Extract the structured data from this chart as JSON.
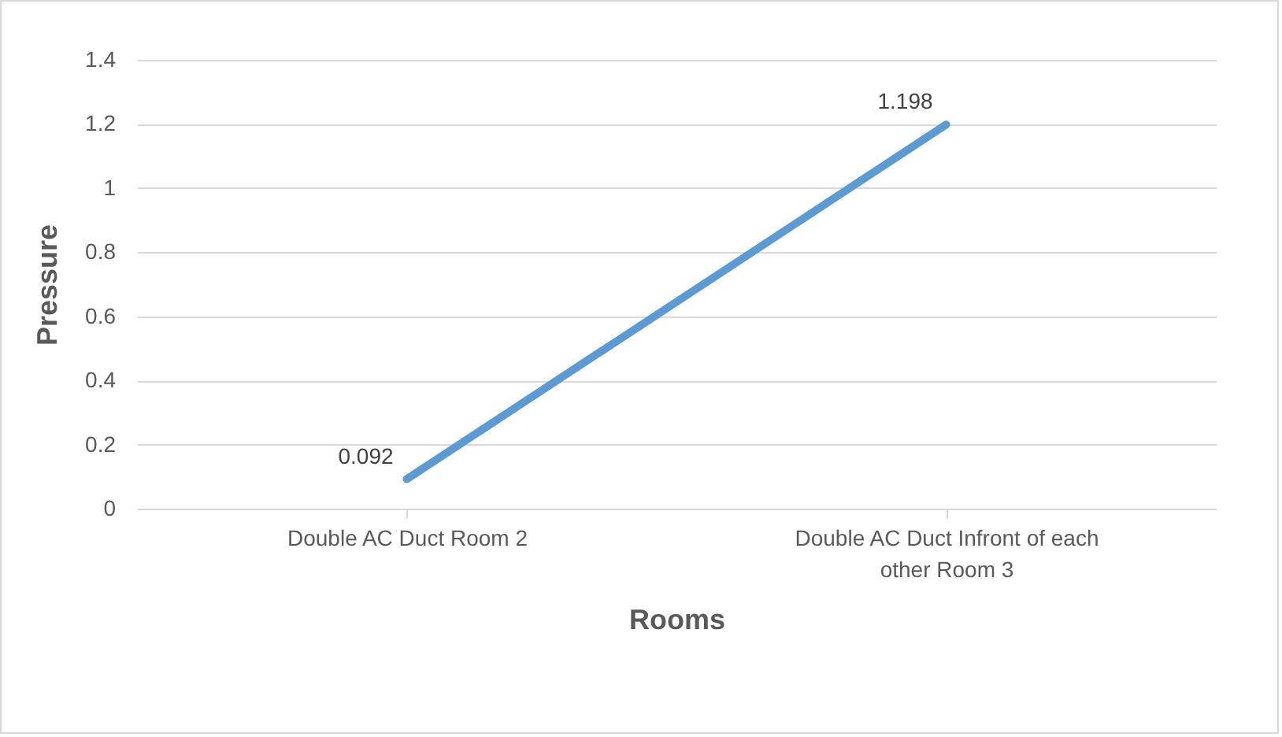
{
  "chart_data": {
    "type": "line",
    "categories": [
      "Double AC Duct Room 2",
      "Double AC Duct Infront of each other Room 3"
    ],
    "values": [
      0.092,
      1.198
    ],
    "color": "#5b9bd5",
    "xlabel": "Rooms",
    "ylabel": "Pressure",
    "ylim": [
      0,
      1.4
    ],
    "yticks": [
      0,
      0.2,
      0.4,
      0.6,
      0.8,
      1,
      1.2,
      1.4
    ],
    "grid": "y",
    "data_labels": true,
    "marker": "none",
    "line_style": "solid"
  }
}
